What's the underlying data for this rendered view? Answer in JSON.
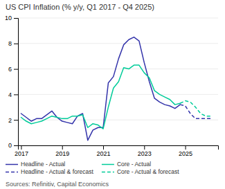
{
  "chart_data": {
    "type": "line",
    "title": "US CPI Inflation (% y/y, Q1 2017 - Q4 2025)",
    "annotations": [
      "Sources: Refinitiv, Capital Economics"
    ],
    "xlim": [
      2016.85,
      2026.6
    ],
    "xticks": [
      2017,
      2019,
      2021,
      2023,
      2025
    ],
    "ylim": [
      0,
      10
    ],
    "yticks": [
      0,
      2,
      4,
      6,
      8,
      10
    ],
    "grid": true,
    "legend": "bottom",
    "series": [
      {
        "name": "Headline - Actual",
        "color": "#3333aa",
        "line_style": "solid",
        "x": [
          2017.0,
          2017.25,
          2017.5,
          2017.75,
          2018.0,
          2018.25,
          2018.5,
          2018.75,
          2019.0,
          2019.25,
          2019.5,
          2019.75,
          2020.0,
          2020.25,
          2020.5,
          2020.75,
          2021.0,
          2021.25,
          2021.5,
          2021.75,
          2022.0,
          2022.25,
          2022.5,
          2022.75,
          2023.0,
          2023.25,
          2023.5,
          2023.75,
          2024.0,
          2024.25,
          2024.5,
          2024.75
        ],
        "values": [
          2.5,
          2.2,
          1.9,
          2.1,
          2.1,
          2.4,
          2.7,
          2.2,
          1.9,
          1.8,
          1.7,
          2.3,
          2.5,
          0.4,
          1.2,
          1.4,
          1.4,
          4.9,
          5.4,
          6.8,
          7.9,
          8.3,
          8.5,
          8.2,
          6.5,
          5.0,
          3.7,
          3.4,
          3.2,
          3.1,
          2.9,
          3.2
        ]
      },
      {
        "name": "Core - Actual",
        "color": "#00cc99",
        "line_style": "solid",
        "x": [
          2017.0,
          2017.25,
          2017.5,
          2017.75,
          2018.0,
          2018.25,
          2018.5,
          2018.75,
          2019.0,
          2019.25,
          2019.5,
          2019.75,
          2020.0,
          2020.25,
          2020.5,
          2020.75,
          2021.0,
          2021.25,
          2021.5,
          2021.75,
          2022.0,
          2022.25,
          2022.5,
          2022.75,
          2023.0,
          2023.25,
          2023.5,
          2023.75,
          2024.0,
          2024.25,
          2024.5,
          2024.75
        ],
        "values": [
          2.2,
          1.9,
          1.7,
          1.8,
          1.9,
          2.1,
          2.3,
          2.2,
          2.1,
          2.1,
          2.3,
          2.3,
          2.4,
          1.4,
          1.7,
          1.6,
          1.3,
          3.0,
          4.5,
          5.0,
          6.1,
          6.0,
          6.3,
          6.3,
          5.7,
          5.3,
          4.3,
          4.0,
          3.8,
          3.6,
          3.2,
          3.3
        ]
      },
      {
        "name": "Headline - Actual & forecast",
        "color": "#3333aa",
        "line_style": "dashed",
        "x": [
          2024.75,
          2025.0,
          2025.25,
          2025.5,
          2025.75,
          2026.0,
          2026.25
        ],
        "values": [
          3.2,
          3.1,
          2.5,
          2.1,
          2.1,
          2.1,
          2.1
        ]
      },
      {
        "name": "Core - Actual & forecast",
        "color": "#00cc99",
        "line_style": "dashed",
        "x": [
          2024.75,
          2025.0,
          2025.25,
          2025.5,
          2025.75,
          2026.0,
          2026.25
        ],
        "values": [
          3.3,
          3.5,
          3.4,
          3.0,
          2.5,
          2.3,
          2.3
        ]
      }
    ]
  }
}
